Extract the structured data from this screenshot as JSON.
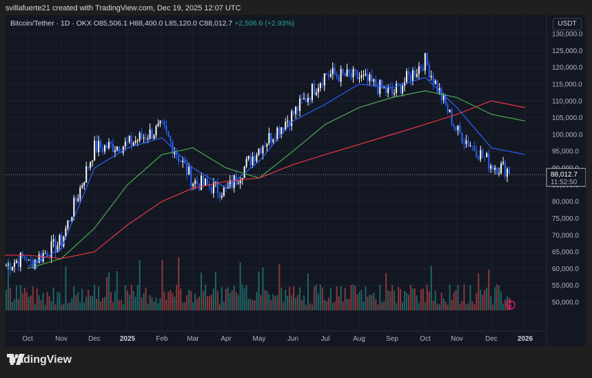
{
  "attribution": "svillafuerte21 created with TradingView.com, Dec 19, 2025 12:07 UTC",
  "legend": {
    "symbol": "Bitcoin/Tether · 1D · OKX",
    "open": "O85,506.1",
    "high": "H88,400.0",
    "low": "L85,120.0",
    "close": "C88,012.7",
    "change": "+2,506.6 (+2.93%)"
  },
  "currency": "USDT",
  "price_axis": {
    "ticks": [
      "130,000.0",
      "125,000.0",
      "120,000.0",
      "115,000.0",
      "110,000.0",
      "105,000.0",
      "100,000.0",
      "95,000.0",
      "90,000.0",
      "85,000.0",
      "80,000.0",
      "75,000.0",
      "70,000.0",
      "65,000.0",
      "60,000.0",
      "55,000.0",
      "50,000.0"
    ],
    "last_price": "88,012.7",
    "countdown": "11:52:50"
  },
  "time_axis": {
    "ticks": [
      "Oct",
      "Nov",
      "Dec",
      "2025",
      "Feb",
      "Mar",
      "Apr",
      "May",
      "Jun",
      "Jul",
      "Aug",
      "Sep",
      "Oct",
      "Nov",
      "Dec",
      "2026"
    ],
    "bold": [
      "2025",
      "2026"
    ]
  },
  "footer": {
    "brand": "TradingView"
  },
  "colors": {
    "background": "#131722",
    "up": "#ffffff",
    "down": "#2962ff",
    "ma_blue": "#2962ff",
    "ma_green": "#4caf50",
    "ma_red": "#f23645",
    "volume_up": "#26a69a",
    "volume_down": "#ef5350"
  },
  "chart_data": {
    "type": "line",
    "title": "Bitcoin/Tether · 1D · OKX",
    "ylim": [
      45000,
      132000
    ],
    "x": [
      "Oct",
      "Nov",
      "Dec",
      "2025",
      "Feb",
      "Mar",
      "Apr",
      "May",
      "Jun",
      "Jul",
      "Aug",
      "Sep",
      "Oct",
      "Nov",
      "Dec",
      "2026"
    ],
    "series": [
      {
        "values": [
          61000,
          68000,
          96000,
          97000,
          102000,
          86000,
          83000,
          96000,
          106000,
          118000,
          117000,
          112000,
          122000,
          101000,
          91000,
          88000
        ]
      },
      {
        "values": [
          60500,
          66000,
          90000,
          96000,
          99000,
          90000,
          84000,
          92000,
          104000,
          109000,
          115000,
          114000,
          117000,
          108000,
          96000,
          94000
        ]
      },
      {
        "values": [
          60000,
          63000,
          72000,
          85000,
          94000,
          96000,
          90000,
          87000,
          95000,
          103000,
          108000,
          111000,
          113000,
          111000,
          106000,
          104000
        ]
      },
      {
        "values": [
          64000,
          63000,
          65000,
          73000,
          80000,
          84000,
          86000,
          87000,
          91000,
          94000,
          97000,
          100000,
          103000,
          106000,
          110000,
          108000
        ]
      }
    ]
  }
}
